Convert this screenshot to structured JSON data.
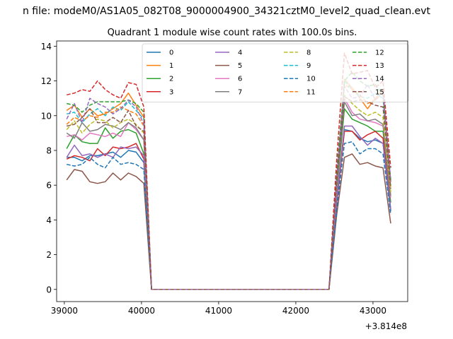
{
  "suptitle": "n file: modeM0/AS1A05_082T08_9000004900_34321cztM0_level2_quad_clean.evt",
  "chart_data": {
    "type": "line",
    "title": "Quadrant 1 module wise count rates with 100.0s bins.",
    "xlabel": "",
    "ylabel": "",
    "x_offset_label": "+3.814e8",
    "xlim": [
      38900,
      43450
    ],
    "ylim": [
      -0.7,
      14.3
    ],
    "xticks": [
      39000,
      40000,
      41000,
      42000,
      43000
    ],
    "xtick_labels": [
      "39000",
      "40000",
      "41000",
      "42000",
      "43000"
    ],
    "yticks": [
      0,
      2,
      4,
      6,
      8,
      10,
      12,
      14
    ],
    "ytick_labels": [
      "0",
      "2",
      "4",
      "6",
      "8",
      "10",
      "12",
      "14"
    ],
    "legend_position": "upper center",
    "legend_columns": 4,
    "x": [
      39030,
      39130,
      39230,
      39330,
      39430,
      39530,
      39630,
      39730,
      39830,
      39930,
      40030,
      40130,
      40230,
      40330,
      40430,
      40530,
      40630,
      40730,
      40830,
      40930,
      41030,
      41130,
      41230,
      41330,
      41430,
      41530,
      41630,
      41730,
      41830,
      41930,
      42030,
      42130,
      42230,
      42330,
      42430,
      42530,
      42630,
      42730,
      42830,
      42930,
      43030,
      43130,
      43230
    ],
    "series": [
      {
        "name": "0",
        "color": "#1f77b4",
        "dash": "solid",
        "values": [
          7.6,
          7.6,
          7.4,
          7.7,
          7.7,
          7.8,
          7.9,
          7.6,
          8.0,
          7.9,
          7.3,
          0,
          0,
          0,
          0,
          0,
          0,
          0,
          0,
          0,
          0,
          0,
          0,
          0,
          0,
          0,
          0,
          0,
          0,
          0,
          0,
          0,
          0,
          0,
          0,
          4.9,
          9.2,
          9.1,
          8.7,
          8.5,
          8.6,
          8.4,
          4.5
        ]
      },
      {
        "name": "1",
        "color": "#ff7f0e",
        "dash": "solid",
        "values": [
          10.3,
          10.6,
          9.9,
          10.4,
          10.0,
          10.1,
          10.4,
          10.7,
          11.3,
          10.6,
          9.9,
          0,
          0,
          0,
          0,
          0,
          0,
          0,
          0,
          0,
          0,
          0,
          0,
          0,
          0,
          0,
          0,
          0,
          0,
          0,
          0,
          0,
          0,
          0,
          0,
          6.2,
          12.1,
          11.6,
          11.0,
          10.4,
          11.0,
          11.5,
          6.2
        ]
      },
      {
        "name": "2",
        "color": "#2ca02c",
        "dash": "solid",
        "values": [
          8.1,
          8.9,
          8.5,
          8.4,
          8.4,
          9.3,
          8.7,
          9.1,
          9.2,
          9.0,
          7.8,
          0,
          0,
          0,
          0,
          0,
          0,
          0,
          0,
          0,
          0,
          0,
          0,
          0,
          0,
          0,
          0,
          0,
          0,
          0,
          0,
          0,
          0,
          0,
          0,
          5.6,
          10.4,
          9.8,
          9.6,
          9.4,
          9.1,
          9.1,
          5.0
        ]
      },
      {
        "name": "3",
        "color": "#d62728",
        "dash": "solid",
        "values": [
          7.5,
          7.7,
          7.6,
          7.4,
          8.1,
          7.7,
          8.2,
          8.1,
          8.2,
          8.4,
          7.5,
          0,
          0,
          0,
          0,
          0,
          0,
          0,
          0,
          0,
          0,
          0,
          0,
          0,
          0,
          0,
          0,
          0,
          0,
          0,
          0,
          0,
          0,
          0,
          0,
          5.0,
          9.1,
          9.1,
          8.6,
          8.9,
          9.1,
          8.7,
          4.6
        ]
      },
      {
        "name": "4",
        "color": "#9467bd",
        "dash": "solid",
        "values": [
          7.6,
          8.3,
          7.7,
          7.8,
          7.6,
          7.8,
          7.6,
          8.2,
          8.1,
          8.2,
          7.7,
          0,
          0,
          0,
          0,
          0,
          0,
          0,
          0,
          0,
          0,
          0,
          0,
          0,
          0,
          0,
          0,
          0,
          0,
          0,
          0,
          0,
          0,
          0,
          0,
          5.1,
          9.4,
          9.4,
          8.8,
          8.3,
          8.7,
          8.4,
          4.6
        ]
      },
      {
        "name": "5",
        "color": "#8c564b",
        "dash": "solid",
        "values": [
          6.3,
          6.9,
          6.8,
          6.2,
          6.1,
          6.2,
          6.7,
          6.3,
          6.7,
          6.5,
          6.1,
          0,
          0,
          0,
          0,
          0,
          0,
          0,
          0,
          0,
          0,
          0,
          0,
          0,
          0,
          0,
          0,
          0,
          0,
          0,
          0,
          0,
          0,
          0,
          0,
          4.3,
          7.6,
          7.8,
          7.2,
          7.3,
          7.1,
          7.0,
          3.8
        ]
      },
      {
        "name": "6",
        "color": "#e377c2",
        "dash": "solid",
        "values": [
          8.8,
          8.9,
          8.6,
          9.0,
          8.9,
          8.8,
          9.0,
          8.8,
          9.6,
          9.2,
          8.6,
          0,
          0,
          0,
          0,
          0,
          0,
          0,
          0,
          0,
          0,
          0,
          0,
          0,
          0,
          0,
          0,
          0,
          0,
          0,
          0,
          0,
          0,
          0,
          0,
          5.8,
          11.0,
          10.2,
          9.8,
          9.7,
          9.6,
          9.4,
          5.3
        ]
      },
      {
        "name": "7",
        "color": "#7f7f7f",
        "dash": "solid",
        "values": [
          9.0,
          8.7,
          9.6,
          9.1,
          9.2,
          9.5,
          9.4,
          9.2,
          9.6,
          9.3,
          8.6,
          0,
          0,
          0,
          0,
          0,
          0,
          0,
          0,
          0,
          0,
          0,
          0,
          0,
          0,
          0,
          0,
          0,
          0,
          0,
          0,
          0,
          0,
          0,
          0,
          5.9,
          10.8,
          10.0,
          10.1,
          9.7,
          9.8,
          9.5,
          5.4
        ]
      },
      {
        "name": "8",
        "color": "#bcbd22",
        "dash": "dashed",
        "values": [
          9.2,
          9.7,
          9.0,
          9.5,
          9.8,
          9.7,
          9.3,
          9.6,
          9.8,
          9.5,
          9.0,
          0,
          0,
          0,
          0,
          0,
          0,
          0,
          0,
          0,
          0,
          0,
          0,
          0,
          0,
          0,
          0,
          0,
          0,
          0,
          0,
          0,
          0,
          0,
          0,
          6.1,
          11.2,
          10.7,
          10.3,
          10.0,
          10.2,
          9.9,
          5.6
        ]
      },
      {
        "name": "9",
        "color": "#17becf",
        "dash": "dashed",
        "values": [
          10.1,
          10.2,
          9.6,
          10.1,
          10.4,
          10.0,
          10.5,
          10.3,
          10.8,
          10.3,
          9.8,
          0,
          0,
          0,
          0,
          0,
          0,
          0,
          0,
          0,
          0,
          0,
          0,
          0,
          0,
          0,
          0,
          0,
          0,
          0,
          0,
          0,
          0,
          0,
          0,
          6.4,
          12.0,
          11.5,
          11.1,
          11.0,
          11.3,
          11.0,
          6.0
        ]
      },
      {
        "name": "10",
        "color": "#1f77b4",
        "dash": "dashed",
        "values": [
          7.2,
          7.1,
          7.2,
          7.6,
          7.2,
          7.0,
          7.6,
          7.2,
          7.3,
          7.2,
          6.9,
          0,
          0,
          0,
          0,
          0,
          0,
          0,
          0,
          0,
          0,
          0,
          0,
          0,
          0,
          0,
          0,
          0,
          0,
          0,
          0,
          0,
          0,
          0,
          0,
          4.6,
          8.4,
          8.5,
          7.8,
          8.1,
          8.1,
          7.8,
          4.3
        ]
      },
      {
        "name": "11",
        "color": "#ff7f0e",
        "dash": "dashed",
        "values": [
          9.5,
          9.9,
          9.7,
          10.0,
          9.9,
          10.2,
          10.2,
          10.5,
          10.3,
          10.1,
          9.4,
          0,
          0,
          0,
          0,
          0,
          0,
          0,
          0,
          0,
          0,
          0,
          0,
          0,
          0,
          0,
          0,
          0,
          0,
          0,
          0,
          0,
          0,
          0,
          0,
          6.3,
          11.8,
          11.5,
          11.2,
          10.7,
          10.9,
          11.3,
          5.9
        ]
      },
      {
        "name": "12",
        "color": "#2ca02c",
        "dash": "dashed",
        "values": [
          10.7,
          10.6,
          10.2,
          10.6,
          10.8,
          10.8,
          10.8,
          10.8,
          10.9,
          10.7,
          10.2,
          0,
          0,
          0,
          0,
          0,
          0,
          0,
          0,
          0,
          0,
          0,
          0,
          0,
          0,
          0,
          0,
          0,
          0,
          0,
          0,
          0,
          0,
          0,
          0,
          6.8,
          12.0,
          12.5,
          12.0,
          11.7,
          11.8,
          11.2,
          6.3
        ]
      },
      {
        "name": "13",
        "color": "#d62728",
        "dash": "dashed",
        "values": [
          11.2,
          11.3,
          11.5,
          11.4,
          12.0,
          11.5,
          11.2,
          11.0,
          11.9,
          11.8,
          10.5,
          0,
          0,
          0,
          0,
          0,
          0,
          0,
          0,
          0,
          0,
          0,
          0,
          0,
          0,
          0,
          0,
          0,
          0,
          0,
          0,
          0,
          0,
          0,
          0,
          7.5,
          13.6,
          12.4,
          12.5,
          12.6,
          11.6,
          12.0,
          7.0
        ]
      },
      {
        "name": "14",
        "color": "#9467bd",
        "dash": "dashed",
        "values": [
          9.8,
          10.7,
          9.6,
          11.0,
          10.7,
          10.5,
          10.1,
          10.4,
          10.9,
          10.5,
          9.5,
          0,
          0,
          0,
          0,
          0,
          0,
          0,
          0,
          0,
          0,
          0,
          0,
          0,
          0,
          0,
          0,
          0,
          0,
          0,
          0,
          0,
          0,
          0,
          0,
          6.4,
          11.7,
          11.0,
          11.1,
          11.8,
          10.9,
          11.4,
          6.2
        ]
      },
      {
        "name": "15",
        "color": "#8c564b",
        "dash": "dashed",
        "values": [
          9.4,
          9.5,
          9.9,
          10.4,
          9.6,
          9.6,
          9.9,
          9.6,
          10.3,
          9.4,
          9.1,
          0,
          0,
          0,
          0,
          0,
          0,
          0,
          0,
          0,
          0,
          0,
          0,
          0,
          0,
          0,
          0,
          0,
          0,
          0,
          0,
          0,
          0,
          0,
          0,
          6.2,
          11.1,
          10.8,
          10.9,
          10.8,
          10.6,
          10.5,
          5.8
        ]
      }
    ]
  }
}
